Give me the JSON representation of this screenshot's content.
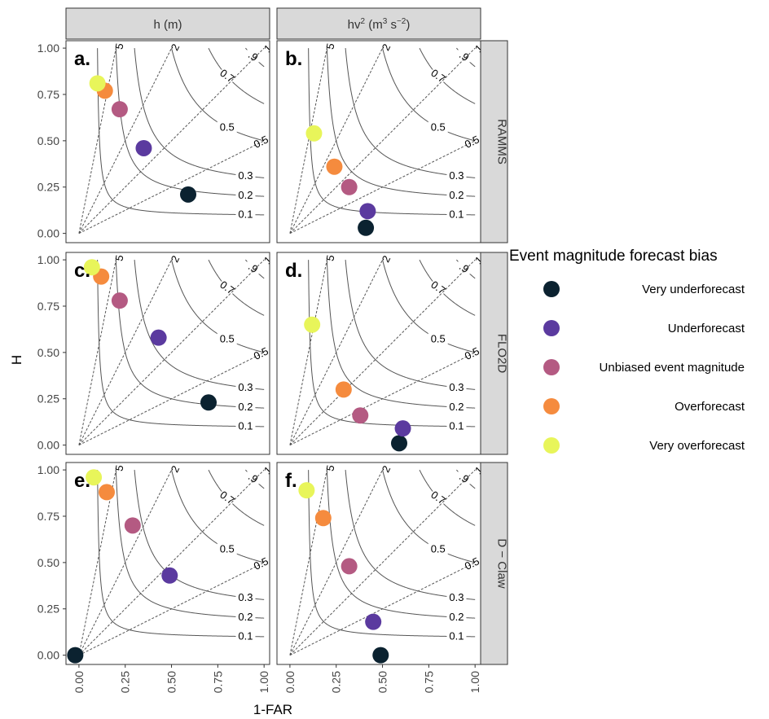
{
  "chart_data": {
    "type": "scatter",
    "xlabel": "1-FAR",
    "ylabel": "H",
    "xlim": [
      0,
      1
    ],
    "ylim": [
      0,
      1
    ],
    "x_ticks": [
      "0.00",
      "0.25",
      "0.50",
      "0.75",
      "1.00"
    ],
    "y_ticks": [
      "0.00",
      "0.25",
      "0.50",
      "0.75",
      "1.00"
    ],
    "columns": [
      {
        "id": "h",
        "label": "h (m)"
      },
      {
        "id": "hv2",
        "label": "hv",
        "sup1": "2",
        "mid": " (m",
        "sup2": "3",
        "mid2": " s",
        "sup3": "−2",
        "end": ")"
      }
    ],
    "rows": [
      {
        "id": "ramms",
        "label": "RAMMS"
      },
      {
        "id": "flo2d",
        "label": "FLO2D"
      },
      {
        "id": "dclaw",
        "label": "D − Claw"
      }
    ],
    "csi_contours": [
      0.1,
      0.2,
      0.3,
      0.5,
      0.7,
      0.9
    ],
    "csi_labels": [
      "0.1",
      "0.2",
      "0.3",
      "0.5",
      "0.7",
      ".9"
    ],
    "bias_lines": [
      0.5,
      1,
      2,
      5
    ],
    "bias_labels": [
      "0.5",
      "1",
      "2",
      "5"
    ],
    "legend": {
      "title": "Event magnitude forecast bias",
      "position": "right",
      "entries": [
        {
          "name": "Very underforecast",
          "color": "#0b2230"
        },
        {
          "name": "Underforecast",
          "color": "#5b3a9f"
        },
        {
          "name": "Unbiased event magnitude",
          "color": "#b45a82"
        },
        {
          "name": "Overforecast",
          "color": "#f58b3e"
        },
        {
          "name": "Very overforecast",
          "color": "#e8f55a"
        }
      ]
    },
    "panels": [
      {
        "letter": "a.",
        "row": 0,
        "col": 0,
        "points": [
          {
            "category": "Very underforecast",
            "x": 0.59,
            "y": 0.21
          },
          {
            "category": "Underforecast",
            "x": 0.35,
            "y": 0.46
          },
          {
            "category": "Unbiased event magnitude",
            "x": 0.22,
            "y": 0.67
          },
          {
            "category": "Overforecast",
            "x": 0.14,
            "y": 0.77
          },
          {
            "category": "Very overforecast",
            "x": 0.1,
            "y": 0.81
          }
        ]
      },
      {
        "letter": "b.",
        "row": 0,
        "col": 1,
        "points": [
          {
            "category": "Very underforecast",
            "x": 0.41,
            "y": 0.03
          },
          {
            "category": "Underforecast",
            "x": 0.42,
            "y": 0.12
          },
          {
            "category": "Unbiased event magnitude",
            "x": 0.32,
            "y": 0.25
          },
          {
            "category": "Overforecast",
            "x": 0.24,
            "y": 0.36
          },
          {
            "category": "Very overforecast",
            "x": 0.13,
            "y": 0.54
          }
        ]
      },
      {
        "letter": "c.",
        "row": 1,
        "col": 0,
        "points": [
          {
            "category": "Very underforecast",
            "x": 0.7,
            "y": 0.23
          },
          {
            "category": "Underforecast",
            "x": 0.43,
            "y": 0.58
          },
          {
            "category": "Unbiased event magnitude",
            "x": 0.22,
            "y": 0.78
          },
          {
            "category": "Overforecast",
            "x": 0.12,
            "y": 0.91
          },
          {
            "category": "Very overforecast",
            "x": 0.07,
            "y": 0.96
          }
        ]
      },
      {
        "letter": "d.",
        "row": 1,
        "col": 1,
        "points": [
          {
            "category": "Very underforecast",
            "x": 0.59,
            "y": 0.01
          },
          {
            "category": "Underforecast",
            "x": 0.61,
            "y": 0.09
          },
          {
            "category": "Unbiased event magnitude",
            "x": 0.38,
            "y": 0.16
          },
          {
            "category": "Overforecast",
            "x": 0.29,
            "y": 0.3
          },
          {
            "category": "Very overforecast",
            "x": 0.12,
            "y": 0.65
          }
        ]
      },
      {
        "letter": "e.",
        "row": 2,
        "col": 0,
        "points": [
          {
            "category": "Very underforecast",
            "x": -0.02,
            "y": 0.0
          },
          {
            "category": "Underforecast",
            "x": 0.49,
            "y": 0.43
          },
          {
            "category": "Unbiased event magnitude",
            "x": 0.29,
            "y": 0.7
          },
          {
            "category": "Overforecast",
            "x": 0.15,
            "y": 0.88
          },
          {
            "category": "Very overforecast",
            "x": 0.08,
            "y": 0.96
          }
        ]
      },
      {
        "letter": "f.",
        "row": 2,
        "col": 1,
        "points": [
          {
            "category": "Very underforecast",
            "x": 0.49,
            "y": 0.0
          },
          {
            "category": "Underforecast",
            "x": 0.45,
            "y": 0.18
          },
          {
            "category": "Unbiased event magnitude",
            "x": 0.32,
            "y": 0.48
          },
          {
            "category": "Overforecast",
            "x": 0.18,
            "y": 0.74
          },
          {
            "category": "Very overforecast",
            "x": 0.09,
            "y": 0.89
          }
        ]
      }
    ]
  }
}
